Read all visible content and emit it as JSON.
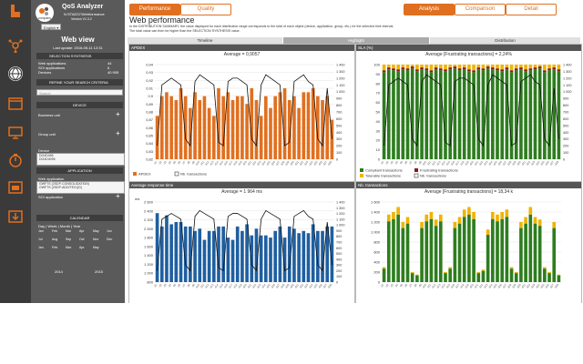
{
  "app": {
    "title": "QoS Analyzer",
    "subtitle": "N.STAD37/Webformance",
    "version": "Version V1.3.2",
    "language": "English",
    "company": "company"
  },
  "panel": {
    "view_title": "Web view",
    "last_update": "Last update: 2016-05-11 12:31",
    "selection_header": "SELECTION SYNTHESIS",
    "stats": [
      {
        "label": "Web applications",
        "value": "44"
      },
      {
        "label": "SOI applications",
        "value": "6"
      },
      {
        "label": "Devices",
        "value": "40 905"
      }
    ],
    "refine_header": "REFINE YOUR SEARCH CRITERIA",
    "search_placeholder": "Search",
    "device_header": "DEVICE",
    "business_unit_label": "Business unit",
    "group_unit_label": "Group unit",
    "device_label": "Device",
    "devices": [
      "DG4D496",
      "DG4D4095"
    ],
    "application_header": "APPLICATION",
    "web_app_label": "Web application",
    "web_apps": [
      "GWFTS (2SDP-CONSOLIDATION)",
      "GWFTS (2SDP-ADD/TECQG)"
    ],
    "soi_app_label": "SOI application",
    "calendar_header": "CALENDAR",
    "calendar_tabs": "Day | Week | Month | Year",
    "years": [
      "2014",
      "2015"
    ],
    "months_2015": [
      "Jan",
      "Feb",
      "Mar",
      "Apr",
      "May",
      "Jun",
      "Jul",
      "Aug",
      "Sep",
      "Oct",
      "Nov",
      "Dec"
    ],
    "months_2016": [
      "Jan.",
      "Feb.",
      "Mar.",
      "Apr.",
      "May"
    ],
    "year_footer": [
      "2016",
      "2016"
    ]
  },
  "top": {
    "performance_label": "Performance",
    "quality_label": "Quality",
    "analysis_label": "Analysis",
    "comparison_label": "Comparison",
    "detail_label": "Detail",
    "page_title": "Web performance",
    "description": "In the DISTRIBUTION SUMMARY, the value displayed for each distribution range corresponds to the total of each object (device, application, group, etc.) for the selected time interval.",
    "description2": "The total value can then be higher than the SELECTION SYNTHESIS value.",
    "sections": [
      "Timeline",
      "Highlight",
      "Distribution"
    ]
  },
  "charts": {
    "apdex": {
      "title": "APDEX",
      "average": "Average = 0,9057",
      "legend": [
        "APDEX",
        "Nb. transactions"
      ],
      "yleft": [
        "0,94",
        "0,93",
        "0,92",
        "0,91",
        "0,9",
        "0,89",
        "0,88",
        "0,87",
        "0,86",
        "0,85",
        "0,84",
        "0,83",
        "0,82"
      ],
      "yright": [
        "1 400",
        "1 300",
        "1 200",
        "1 100",
        "1 000",
        "900",
        "800",
        "700",
        "600",
        "500",
        "400",
        "300",
        "200",
        "100",
        "0"
      ]
    },
    "sla": {
      "title": "SLA (%)",
      "average": "Average [Frustrating transactions] = 2,24%",
      "legend": [
        "Compliant transactions",
        "Frustrating transactions",
        "Tolerable transactions",
        "Nb. transactions"
      ],
      "yleft": [
        "100",
        "90",
        "80",
        "70",
        "60",
        "50",
        "40",
        "30",
        "20",
        "10",
        "0"
      ],
      "yright": [
        "1 400",
        "1 300",
        "1 200",
        "1 100",
        "1 000",
        "900",
        "800",
        "700",
        "600",
        "500",
        "400",
        "300",
        "200",
        "100",
        "0"
      ]
    },
    "response": {
      "title": "Average response time",
      "average": "Average = 1 964 ms",
      "unit": "ms",
      "yleft": [
        "2 600",
        "2 400",
        "2 200",
        "2 000",
        "1 800",
        "1 600",
        "1 400",
        "1 200",
        "1 000",
        "800"
      ],
      "yright": [
        "1 400",
        "1 300",
        "1 200",
        "1 100",
        "1 000",
        "900",
        "800",
        "700",
        "600",
        "500",
        "400",
        "300",
        "200",
        "100",
        "0"
      ]
    },
    "transactions": {
      "title": "Nb. transactions",
      "average": "Average [Frustrating transactions] = 18,34 k",
      "yleft": [
        "1 600",
        "1 400",
        "1 200",
        "1 000",
        "800",
        "600",
        "400",
        "200",
        "0"
      ]
    }
  },
  "chart_data": [
    {
      "type": "bar",
      "title": "APDEX",
      "ylabel": "",
      "ylim": [
        0.82,
        0.94
      ],
      "values": [
        0.875,
        0.9,
        0.905,
        0.9,
        0.895,
        0.91,
        0.9,
        0.885,
        0.905,
        0.895,
        0.9,
        0.885,
        0.875,
        0.91,
        0.9,
        0.905,
        0.895,
        0.9,
        0.9,
        0.89,
        0.91,
        0.895,
        0.875,
        0.9,
        0.885,
        0.9,
        0.905,
        0.91,
        0.895,
        0.9,
        0.885,
        0.905,
        0.905,
        0.91,
        0.9,
        0.895,
        0.9,
        0.87
      ],
      "line": [
        200,
        1100,
        1150,
        1200,
        1150,
        1100,
        300,
        200,
        1150,
        1250,
        1200,
        1150,
        1100,
        250,
        200,
        1150,
        1200,
        1200,
        1150,
        1100,
        300,
        200,
        1100,
        1250,
        1200,
        1150,
        1100,
        200,
        250,
        1150,
        1200,
        1250,
        1150,
        1100,
        300,
        200,
        1050,
        300
      ]
    },
    {
      "type": "bar",
      "title": "SLA (%)",
      "ylim": [
        0,
        100
      ],
      "series": [
        {
          "name": "Compliant transactions"
        },
        {
          "name": "Frustrating transactions"
        },
        {
          "name": "Tolerable transactions"
        }
      ]
    },
    {
      "type": "bar",
      "title": "Average response time",
      "ylabel": "ms",
      "ylim": [
        800,
        2600
      ],
      "values": [
        2350,
        2050,
        2300,
        2100,
        2150,
        2150,
        2050,
        2050,
        1950,
        2000,
        1750,
        1950,
        1950,
        2050,
        2050,
        1800,
        1750,
        2050,
        1950,
        2100,
        1850,
        2000,
        1850,
        1850,
        1800,
        1950,
        2050,
        1800,
        2050,
        2000,
        1900,
        1950,
        1900,
        2100,
        1950,
        1950,
        2050,
        2050
      ],
      "line": [
        200,
        1100,
        1150,
        1200,
        1150,
        1100,
        300,
        200,
        1150,
        1250,
        1200,
        1150,
        1100,
        250,
        200,
        1150,
        1200,
        1200,
        1150,
        1100,
        300,
        200,
        1100,
        1250,
        1200,
        1150,
        1100,
        200,
        250,
        1150,
        1200,
        1250,
        1150,
        1100,
        300,
        200,
        1050,
        300
      ]
    },
    {
      "type": "bar",
      "title": "Nb. transactions",
      "ylim": [
        0,
        1600
      ],
      "values": [
        300,
        1350,
        1400,
        1500,
        1200,
        1300,
        200,
        150,
        1200,
        1350,
        1400,
        1250,
        1350,
        200,
        300,
        1200,
        1300,
        1450,
        1500,
        1400,
        200,
        250,
        1050,
        1400,
        1350,
        1400,
        1450,
        300,
        200,
        1200,
        1300,
        1500,
        1300,
        1250,
        300,
        200,
        1200,
        150
      ]
    }
  ]
}
